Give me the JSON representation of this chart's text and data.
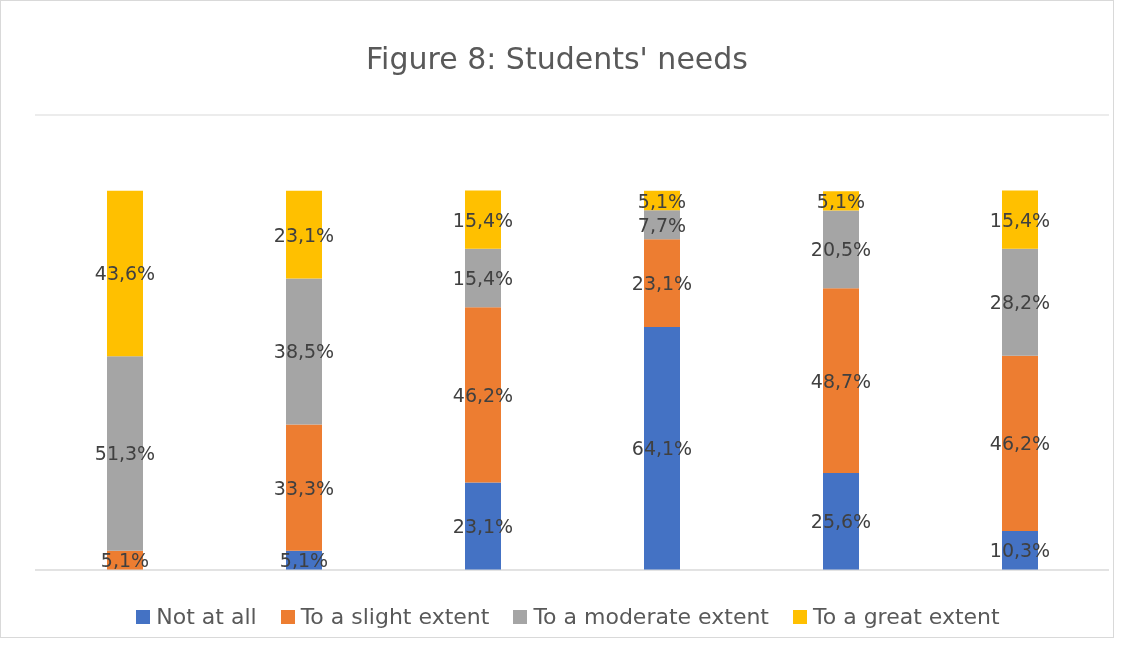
{
  "chart_data": {
    "type": "bar",
    "title": "Figure 8: Students' needs",
    "stacked": true,
    "categories": [
      null,
      null,
      null,
      null,
      null,
      null
    ],
    "series": [
      {
        "name": "Not at all",
        "color": "#4472c4",
        "values": [
          null,
          5.1,
          23.1,
          64.1,
          25.6,
          10.3
        ],
        "value_labels": [
          null,
          "5,1%",
          "23,1%",
          "64,1%",
          "25,6%",
          "10,3%"
        ]
      },
      {
        "name": "To a slight extent",
        "color": "#ed7d31",
        "values": [
          5.1,
          33.3,
          46.2,
          23.1,
          48.7,
          46.2
        ],
        "value_labels": [
          "5,1%",
          "33,3%",
          "46,2%",
          "23,1%",
          "48,7%",
          "46,2%"
        ]
      },
      {
        "name": "To a moderate extent",
        "color": "#a5a5a5",
        "values": [
          51.3,
          38.5,
          15.4,
          7.7,
          20.5,
          28.2
        ],
        "value_labels": [
          "51,3%",
          "38,5%",
          "15,4%",
          "7,7%",
          "20,5%",
          "28,2%"
        ]
      },
      {
        "name": "To a great extent",
        "color": "#ffc000",
        "values": [
          43.6,
          23.1,
          15.4,
          5.1,
          5.1,
          15.4
        ],
        "value_labels": [
          "43,6%",
          "23,1%",
          "15,4%",
          "5,1%",
          "5,1%",
          "15,4%"
        ]
      }
    ],
    "ylim": [
      0,
      120
    ],
    "tick_labels": false,
    "grid": "y",
    "legend": "bottom"
  }
}
